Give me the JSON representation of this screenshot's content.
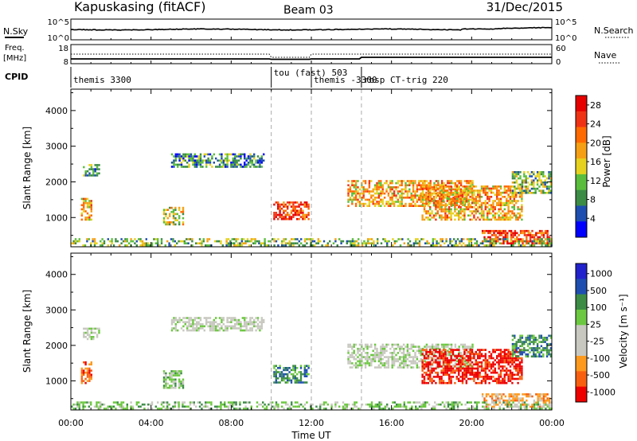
{
  "header": {
    "station": "Kapuskasing (fitACF)",
    "beam": "Beam 03",
    "date": "31/Dec/2015"
  },
  "top_panels": {
    "nsky_label": "N.Sky",
    "nsky_ticks": [
      "10^5",
      "10^0"
    ],
    "nsearch_label": "N.Search",
    "nsearch_ticks": [
      "10^5",
      "10^0"
    ],
    "freq_label_1": "Freq.",
    "freq_label_2": "[MHz]",
    "freq_ticks": [
      "18",
      "8"
    ],
    "nave_label": "Nave",
    "nave_ticks": [
      "60",
      "0"
    ],
    "cpid_label": "CPID"
  },
  "cpid_segments": [
    {
      "label": "themis 3300",
      "start": 0.0
    },
    {
      "label": "tou (fast) 503",
      "start": 10.0
    },
    {
      "label": "themis -3300",
      "start": 12.0
    },
    {
      "label": "rbsp CT-trig 220",
      "start": 14.5
    }
  ],
  "colors": {
    "power": [
      "#0000ff",
      "#1e4fb0",
      "#3c8c46",
      "#5abe3c",
      "#e6d21e",
      "#f5a014",
      "#ff6a00",
      "#f03214",
      "#e60000"
    ],
    "velocity": [
      "#ee0000",
      "#f86010",
      "#fd9a1e",
      "#c8c8c0",
      "#c8c8c0",
      "#6cc840",
      "#3c8c46",
      "#1e4fb0",
      "#2222cc"
    ]
  },
  "chart_data": [
    {
      "type": "heatmap",
      "name": "power",
      "xlabel": "",
      "ylabel": "Slant Range [km]",
      "xlim": [
        0,
        24
      ],
      "ylim": [
        180,
        4600
      ],
      "yticks": [
        "1000",
        "2000",
        "3000",
        "4000"
      ],
      "colorbar": {
        "label": "Power [dB]",
        "ticks": [
          "4",
          "8",
          "12",
          "16",
          "20",
          "24",
          "28"
        ],
        "range": [
          0,
          30
        ]
      },
      "echo_regions": [
        {
          "t": [
            0.6,
            1.4
          ],
          "r": [
            2200,
            2500
          ],
          "v": 7
        },
        {
          "t": [
            0.5,
            1.0
          ],
          "r": [
            950,
            1550
          ],
          "v": 18
        },
        {
          "t": [
            4.6,
            5.6
          ],
          "r": [
            800,
            1300
          ],
          "v": 16
        },
        {
          "t": [
            5.0,
            9.6
          ],
          "r": [
            2400,
            2800
          ],
          "v": 8
        },
        {
          "t": [
            10.1,
            11.9
          ],
          "r": [
            950,
            1450
          ],
          "v": 26
        },
        {
          "t": [
            13.8,
            20.0
          ],
          "r": [
            1350,
            2050
          ],
          "v": 18
        },
        {
          "t": [
            17.5,
            22.5
          ],
          "r": [
            950,
            1900
          ],
          "v": 20
        },
        {
          "t": [
            20.5,
            23.9
          ],
          "r": [
            250,
            650
          ],
          "v": 25
        },
        {
          "t": [
            22.0,
            24.0
          ],
          "r": [
            1700,
            2300
          ],
          "v": 10
        },
        {
          "t": [
            0.0,
            24.0
          ],
          "r": [
            200,
            420
          ],
          "v": 10
        }
      ]
    },
    {
      "type": "heatmap",
      "name": "velocity",
      "xlabel": "Time UT",
      "ylabel": "Slant Range [km]",
      "xlim": [
        0,
        24
      ],
      "ylim": [
        180,
        4600
      ],
      "xticks": [
        "00:00",
        "04:00",
        "08:00",
        "12:00",
        "16:00",
        "20:00",
        "00:00"
      ],
      "yticks": [
        "1000",
        "2000",
        "3000",
        "4000"
      ],
      "colorbar": {
        "label": "Velocity [m s⁻¹]",
        "ticks": [
          "1000",
          "500",
          "100",
          "25",
          "-25",
          "-100",
          "-500",
          "-1000"
        ]
      },
      "echo_regions": [
        {
          "t": [
            0.6,
            1.4
          ],
          "r": [
            2200,
            2500
          ],
          "v": 4
        },
        {
          "t": [
            0.5,
            1.0
          ],
          "r": [
            950,
            1550
          ],
          "v": 1
        },
        {
          "t": [
            4.6,
            5.6
          ],
          "r": [
            800,
            1300
          ],
          "v": 5
        },
        {
          "t": [
            5.0,
            9.6
          ],
          "r": [
            2400,
            2800
          ],
          "v": 4
        },
        {
          "t": [
            10.1,
            11.9
          ],
          "r": [
            950,
            1450
          ],
          "v": 6
        },
        {
          "t": [
            13.8,
            20.0
          ],
          "r": [
            1350,
            2050
          ],
          "v": 4
        },
        {
          "t": [
            17.5,
            22.5
          ],
          "r": [
            950,
            1900
          ],
          "v": 0
        },
        {
          "t": [
            20.5,
            23.9
          ],
          "r": [
            250,
            650
          ],
          "v": 2
        },
        {
          "t": [
            22.0,
            24.0
          ],
          "r": [
            1700,
            2300
          ],
          "v": 6
        },
        {
          "t": [
            0.0,
            24.0
          ],
          "r": [
            200,
            420
          ],
          "v": 5
        }
      ]
    }
  ]
}
